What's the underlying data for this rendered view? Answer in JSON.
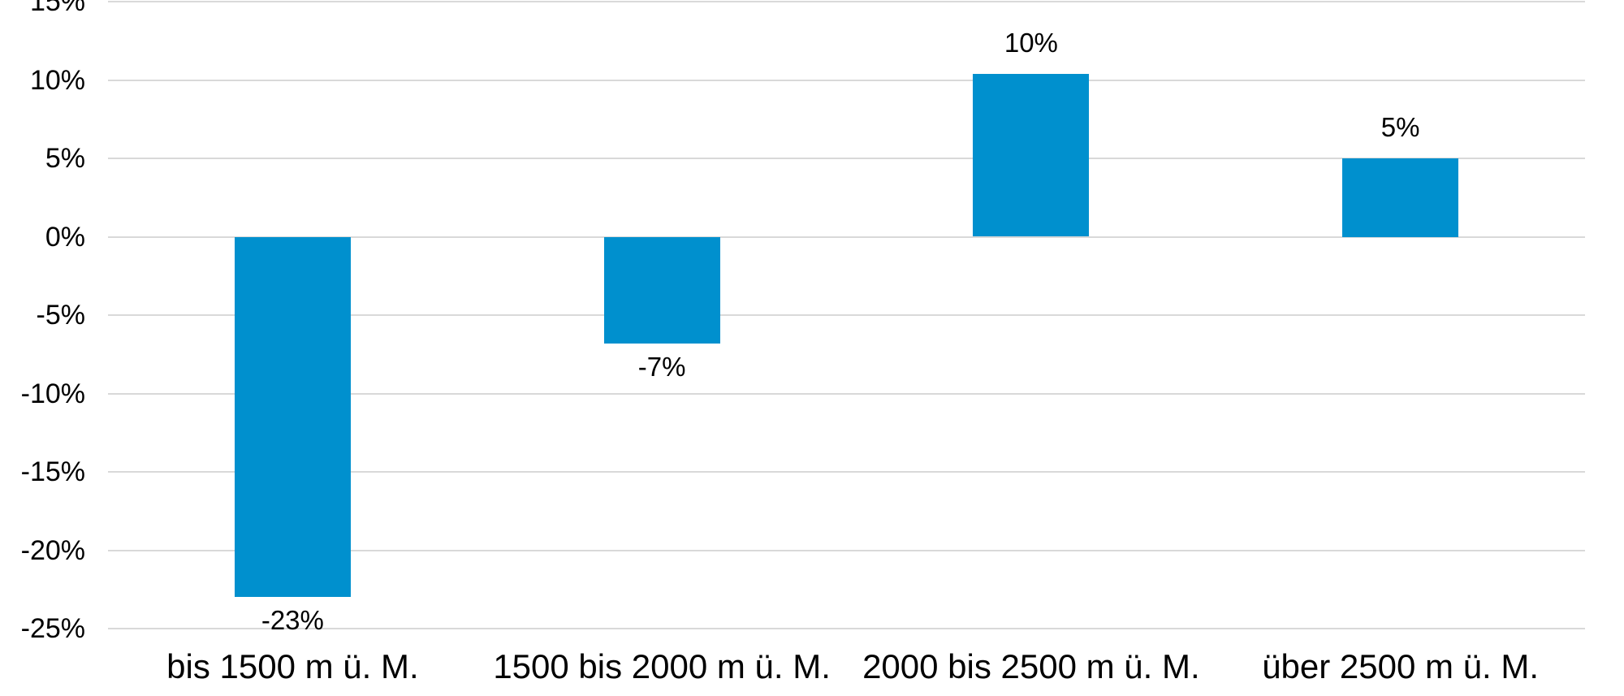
{
  "chart_data": {
    "type": "bar",
    "title": "",
    "xlabel": "",
    "ylabel": "",
    "categories": [
      "bis 1500 m ü. M.",
      "1500 bis 2000 m ü. M.",
      "2000 bis 2500 m ü. M.",
      "über 2500 m ü. M."
    ],
    "values": [
      -23,
      -7,
      10,
      5
    ],
    "values_precise": [
      -23,
      -6.8,
      10.4,
      5
    ],
    "data_labels": [
      "-23%",
      "-7%",
      "10%",
      "5%"
    ],
    "y_ticks": [
      {
        "value": 15,
        "label": "15%"
      },
      {
        "value": 10,
        "label": "10%"
      },
      {
        "value": 5,
        "label": "5%"
      },
      {
        "value": 0,
        "label": "0%"
      },
      {
        "value": -5,
        "label": "-5%"
      },
      {
        "value": -10,
        "label": "-10%"
      },
      {
        "value": -15,
        "label": "-15%"
      },
      {
        "value": -20,
        "label": "-20%"
      },
      {
        "value": -25,
        "label": "-25%"
      }
    ],
    "ylim": [
      -25,
      15
    ],
    "grid": true,
    "legend": false,
    "data_label_position": "outside-end",
    "colors": {
      "bar": "#0090CE",
      "gridline": "#D9D9D9",
      "text": "#000000",
      "background": "#FFFFFF"
    }
  }
}
